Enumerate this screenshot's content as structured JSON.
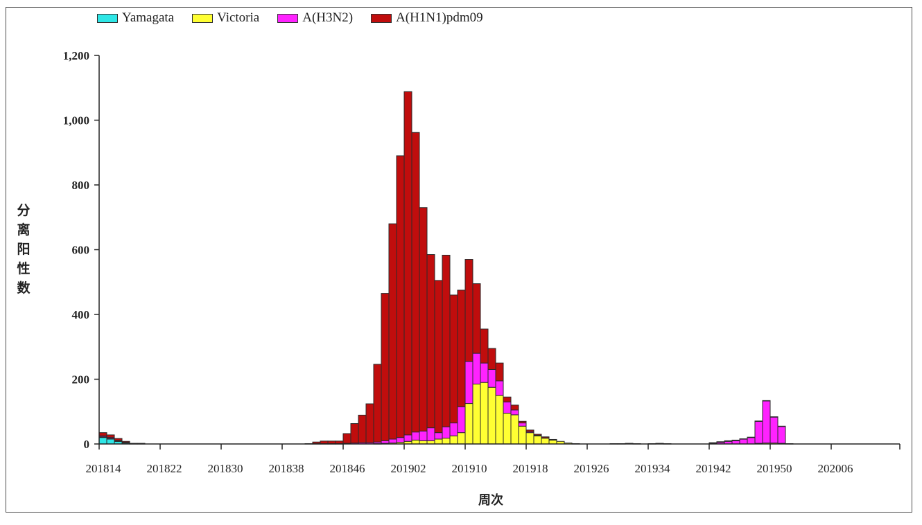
{
  "chart_data": {
    "type": "bar",
    "stacked": true,
    "xlabel": "周次",
    "ylabel": "分离阳性数",
    "ylim": [
      0,
      1200
    ],
    "yticks": [
      0,
      200,
      400,
      600,
      800,
      1000,
      1200
    ],
    "ytick_labels": [
      "0",
      "200",
      "400",
      "600",
      "800",
      "1,000",
      "1,200"
    ],
    "xtick_labels": [
      "201814",
      "201822",
      "201830",
      "201838",
      "201846",
      "201902",
      "201910",
      "201918",
      "201926",
      "201934",
      "201942",
      "201950",
      "202006"
    ],
    "legend_position": "top-left",
    "grid": false,
    "categories": [
      "201814",
      "201815",
      "201816",
      "201817",
      "201818",
      "201819",
      "201820",
      "201821",
      "201822",
      "201823",
      "201824",
      "201825",
      "201826",
      "201827",
      "201828",
      "201829",
      "201830",
      "201831",
      "201832",
      "201833",
      "201834",
      "201835",
      "201836",
      "201837",
      "201838",
      "201839",
      "201840",
      "201841",
      "201842",
      "201843",
      "201844",
      "201845",
      "201846",
      "201847",
      "201848",
      "201849",
      "201850",
      "201851",
      "201852",
      "201901",
      "201902",
      "201903",
      "201904",
      "201905",
      "201906",
      "201907",
      "201908",
      "201909",
      "201910",
      "201911",
      "201912",
      "201913",
      "201914",
      "201915",
      "201916",
      "201917",
      "201918",
      "201919",
      "201920",
      "201921",
      "201922",
      "201923",
      "201924",
      "201925",
      "201926",
      "201927",
      "201928",
      "201929",
      "201930",
      "201931",
      "201932",
      "201933",
      "201934",
      "201935",
      "201936",
      "201937",
      "201938",
      "201939",
      "201940",
      "201941",
      "201942",
      "201943",
      "201944",
      "201945",
      "201946",
      "201947",
      "201948",
      "201949",
      "201950",
      "201951",
      "201952",
      "202001",
      "202002",
      "202003",
      "202004",
      "202005",
      "202006",
      "202007",
      "202008",
      "202009",
      "202010",
      "202011",
      "202012",
      "202013",
      "202014"
    ],
    "series": [
      {
        "name": "Yamagata",
        "color": "#2ee6e6",
        "values": [
          20,
          15,
          8,
          3,
          1,
          1,
          0,
          0,
          0,
          0,
          0,
          0,
          0,
          0,
          0,
          0,
          0,
          0,
          0,
          0,
          0,
          0,
          0,
          0,
          0,
          0,
          0,
          0,
          0,
          0,
          0,
          0,
          0,
          0,
          0,
          0,
          0,
          0,
          0,
          0,
          0,
          0,
          0,
          0,
          0,
          0,
          0,
          0,
          0,
          0,
          0,
          0,
          0,
          0,
          0,
          0,
          0,
          0,
          0,
          0,
          0,
          0,
          0,
          0,
          0,
          0,
          0,
          0,
          0,
          0,
          0,
          0,
          0,
          0,
          0,
          0,
          0,
          0,
          0,
          0,
          0,
          0,
          0,
          0,
          0,
          0,
          0,
          0,
          0,
          0,
          0,
          0,
          0,
          0,
          0,
          0,
          0,
          0,
          0,
          0,
          0,
          0,
          0,
          0,
          0
        ]
      },
      {
        "name": "Victoria",
        "color": "#ffff33",
        "values": [
          2,
          2,
          1,
          1,
          0,
          0,
          0,
          0,
          0,
          0,
          0,
          0,
          0,
          0,
          0,
          0,
          0,
          0,
          0,
          0,
          0,
          0,
          0,
          0,
          0,
          0,
          0,
          0,
          0,
          0,
          0,
          0,
          0,
          0,
          0,
          0,
          1,
          2,
          3,
          5,
          8,
          12,
          10,
          10,
          15,
          18,
          25,
          35,
          125,
          185,
          190,
          175,
          150,
          95,
          90,
          55,
          35,
          25,
          18,
          12,
          8,
          3,
          1,
          0,
          0,
          0,
          0,
          0,
          0,
          0,
          0,
          0,
          0,
          0,
          0,
          0,
          0,
          0,
          0,
          0,
          0,
          0,
          0,
          0,
          0,
          0,
          2,
          3,
          3,
          2,
          1,
          0,
          0,
          0,
          0,
          0,
          0,
          0,
          0,
          0,
          0,
          0,
          0,
          0,
          0
        ]
      },
      {
        "name": "A(H3N2)",
        "color": "#ff22ff",
        "values": [
          3,
          3,
          2,
          1,
          0,
          0,
          0,
          0,
          0,
          0,
          0,
          0,
          0,
          0,
          0,
          0,
          0,
          0,
          0,
          0,
          0,
          0,
          0,
          0,
          0,
          0,
          0,
          0,
          1,
          1,
          1,
          1,
          2,
          3,
          4,
          4,
          5,
          8,
          12,
          15,
          20,
          25,
          30,
          40,
          20,
          35,
          40,
          80,
          130,
          95,
          60,
          55,
          45,
          35,
          15,
          10,
          3,
          2,
          1,
          1,
          0,
          0,
          0,
          0,
          0,
          0,
          0,
          0,
          0,
          0,
          0,
          0,
          0,
          0,
          0,
          0,
          0,
          0,
          0,
          0,
          2,
          5,
          8,
          10,
          15,
          20,
          68,
          130,
          80,
          52,
          0,
          0,
          0,
          0,
          0,
          0,
          0,
          0,
          0,
          0,
          0,
          0,
          0,
          0,
          0
        ]
      },
      {
        "name": "A(H1N1)pdm09",
        "color": "#c00d0d",
        "values": [
          10,
          8,
          6,
          3,
          1,
          1,
          0,
          0,
          0,
          0,
          0,
          0,
          0,
          0,
          0,
          0,
          0,
          0,
          0,
          0,
          0,
          0,
          0,
          0,
          0,
          0,
          0,
          1,
          5,
          8,
          8,
          8,
          30,
          60,
          85,
          120,
          240,
          455,
          665,
          870,
          1060,
          925,
          690,
          535,
          470,
          530,
          395,
          360,
          315,
          215,
          105,
          65,
          55,
          15,
          15,
          5,
          5,
          3,
          3,
          1,
          0,
          0,
          0,
          0,
          0,
          0,
          0,
          1,
          1,
          2,
          1,
          0,
          1,
          2,
          1,
          0,
          0,
          0,
          0,
          0,
          2,
          2,
          2,
          2,
          1,
          1,
          1,
          1,
          1,
          1,
          0,
          0,
          0,
          0,
          0,
          0,
          0,
          0,
          0,
          0,
          0,
          0,
          0,
          0,
          0
        ]
      }
    ]
  }
}
